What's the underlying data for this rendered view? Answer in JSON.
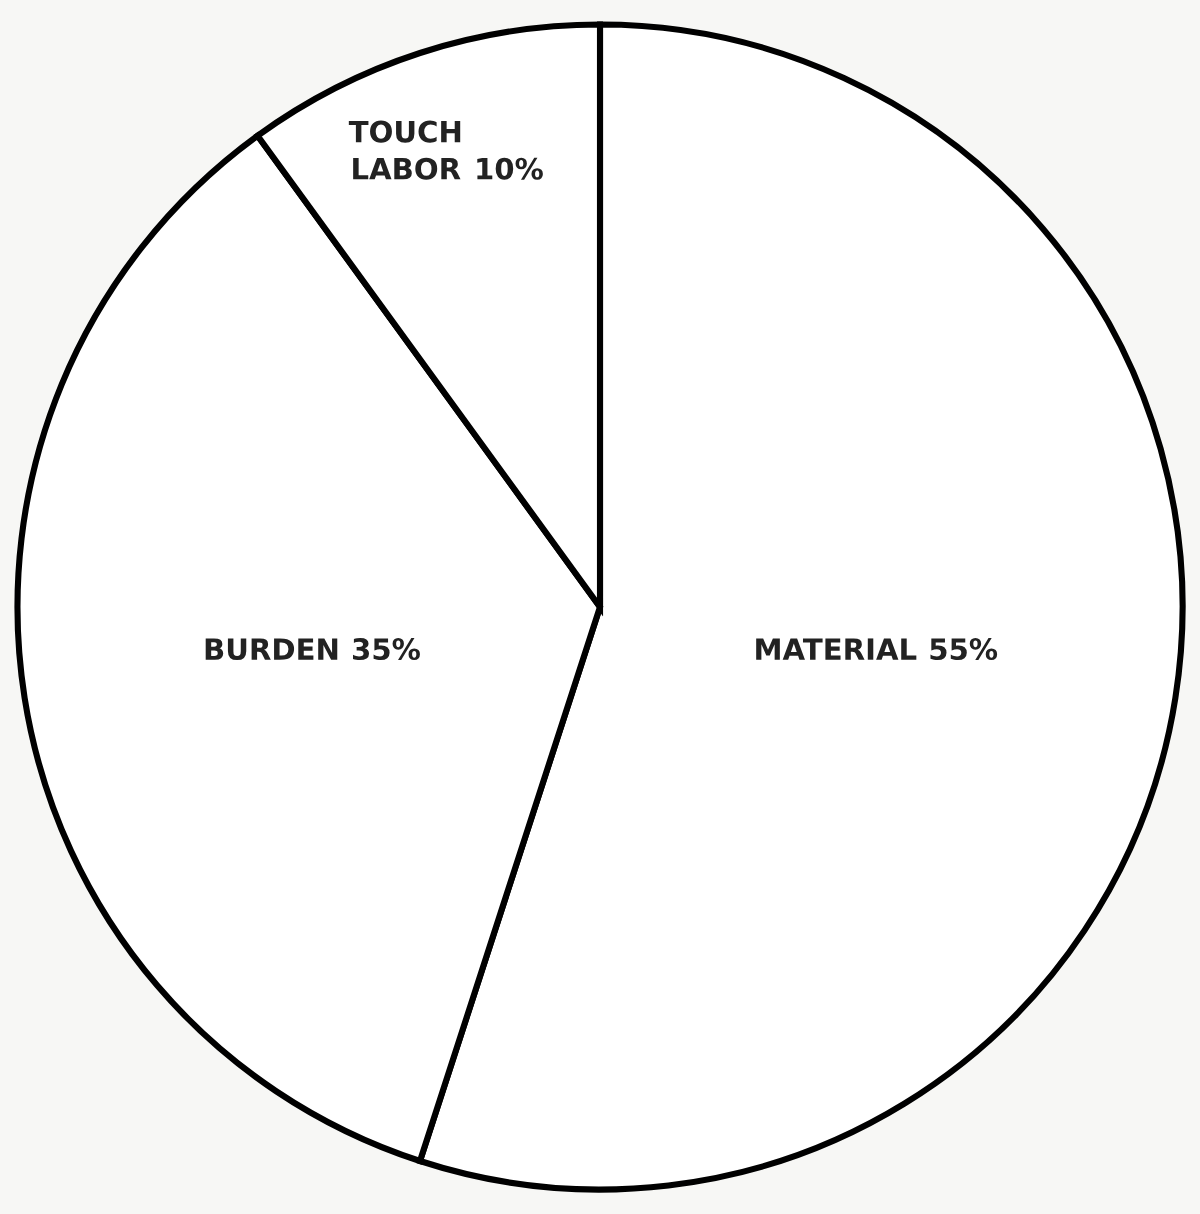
{
  "chart_data": {
    "type": "pie",
    "categories": [
      "MATERIAL",
      "BURDEN",
      "TOUCH\nLABOR"
    ],
    "values": [
      55,
      35,
      10
    ],
    "value_labels": [
      "55%",
      "35%",
      "10%"
    ],
    "colors": [
      "#ffffff",
      "#ffffff",
      "#ffffff"
    ]
  }
}
